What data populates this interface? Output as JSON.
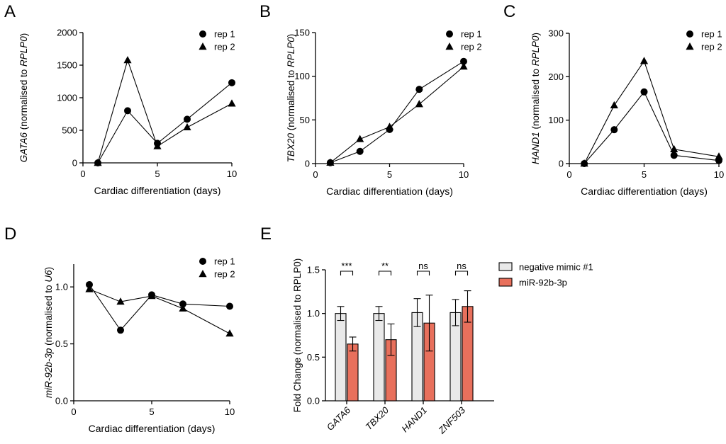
{
  "figure": {
    "colors": {
      "rep_line": "#000000",
      "negative_fill": "#e9e9e9",
      "mir_fill": "#e8705c",
      "axis": "#000000"
    }
  },
  "chart_data": [
    {
      "panel": "A",
      "type": "line",
      "ylabel_gene": "GATA6",
      "ylabel_mid": " (normalised to ",
      "ylabel_ref": "RPLP0",
      "ylabel_end": ")",
      "xlabel": "Cardiac differentiation (days)",
      "xlim": [
        0,
        10
      ],
      "ylim": [
        0,
        2000
      ],
      "xticks": [
        0,
        5,
        10
      ],
      "yticks": [
        0,
        500,
        1000,
        1500,
        2000
      ],
      "legend": [
        "rep 1",
        "rep 2"
      ],
      "series": [
        {
          "name": "rep 1",
          "marker": "circle",
          "x": [
            1,
            3,
            5,
            7,
            10
          ],
          "y": [
            0,
            800,
            300,
            670,
            1230
          ]
        },
        {
          "name": "rep 2",
          "marker": "triangle",
          "x": [
            1,
            3,
            5,
            7,
            10
          ],
          "y": [
            0,
            1575,
            255,
            545,
            910
          ]
        }
      ]
    },
    {
      "panel": "B",
      "type": "line",
      "ylabel_gene": "TBX20",
      "ylabel_mid": " (normalised to ",
      "ylabel_ref": "RPLP0",
      "ylabel_end": ")",
      "xlabel": "Cardiac differentiation (days)",
      "xlim": [
        0,
        10
      ],
      "ylim": [
        0,
        150
      ],
      "xticks": [
        0,
        5,
        10
      ],
      "yticks": [
        0,
        50,
        100,
        150
      ],
      "legend": [
        "rep 1",
        "rep 2"
      ],
      "series": [
        {
          "name": "rep 1",
          "marker": "circle",
          "x": [
            1,
            3,
            5,
            7,
            10
          ],
          "y": [
            1,
            14,
            39,
            85,
            117
          ]
        },
        {
          "name": "rep 2",
          "marker": "triangle",
          "x": [
            1,
            3,
            5,
            7,
            10
          ],
          "y": [
            1,
            28,
            42,
            68,
            111
          ]
        }
      ]
    },
    {
      "panel": "C",
      "type": "line",
      "ylabel_gene": "HAND1",
      "ylabel_mid": " (normalised to ",
      "ylabel_ref": "RPLP0",
      "ylabel_end": ")",
      "xlabel": "Cardiac differentiation (days)",
      "xlim": [
        0,
        10
      ],
      "ylim": [
        0,
        300
      ],
      "xticks": [
        0,
        5,
        10
      ],
      "yticks": [
        0,
        100,
        200,
        300
      ],
      "legend": [
        "rep 1",
        "rep 2"
      ],
      "series": [
        {
          "name": "rep 1",
          "marker": "circle",
          "x": [
            1,
            3,
            5,
            7,
            10
          ],
          "y": [
            0,
            78,
            165,
            19,
            7
          ]
        },
        {
          "name": "rep 2",
          "marker": "triangle",
          "x": [
            1,
            3,
            5,
            7,
            10
          ],
          "y": [
            0,
            134,
            236,
            33,
            16
          ]
        }
      ]
    },
    {
      "panel": "D",
      "type": "line",
      "ylabel_gene": "miR-92b-3p",
      "ylabel_mid": " (normalised to ",
      "ylabel_ref": "U6",
      "ylabel_end": ")",
      "xlabel": "Cardiac differentiation (days)",
      "xlim": [
        0,
        10
      ],
      "ylim": [
        0,
        1.2
      ],
      "xticks": [
        0,
        5,
        10
      ],
      "yticks": [
        0.0,
        0.5,
        1.0
      ],
      "ytick_labels": [
        "0.0",
        "0.5",
        "1.0"
      ],
      "legend": [
        "rep 1",
        "rep 2"
      ],
      "series": [
        {
          "name": "rep 1",
          "marker": "circle",
          "x": [
            1,
            3,
            5,
            7,
            10
          ],
          "y": [
            1.02,
            0.62,
            0.93,
            0.85,
            0.83
          ]
        },
        {
          "name": "rep 2",
          "marker": "triangle",
          "x": [
            1,
            3,
            5,
            7,
            10
          ],
          "y": [
            0.98,
            0.87,
            0.92,
            0.81,
            0.59
          ]
        }
      ]
    },
    {
      "panel": "E",
      "type": "bar",
      "ylabel": "Fold Change (normalised to RPLP0)",
      "ylim": [
        0,
        1.5
      ],
      "yticks": [
        0.0,
        0.5,
        1.0,
        1.5
      ],
      "ytick_labels": [
        "0.0",
        "0.5",
        "1.0",
        "1.5"
      ],
      "categories": [
        "GATA6",
        "TBX20",
        "HAND1",
        "ZNF503"
      ],
      "significance": [
        "***",
        "**",
        "ns",
        "ns"
      ],
      "legend": [
        "negative mimic #1",
        "miR-92b-3p"
      ],
      "series": [
        {
          "name": "negative mimic #1",
          "values": [
            1.0,
            1.0,
            1.01,
            1.01
          ],
          "errors": [
            0.08,
            0.08,
            0.16,
            0.15
          ]
        },
        {
          "name": "miR-92b-3p",
          "values": [
            0.65,
            0.7,
            0.89,
            1.08
          ],
          "errors": [
            0.08,
            0.18,
            0.32,
            0.18
          ]
        }
      ]
    }
  ]
}
